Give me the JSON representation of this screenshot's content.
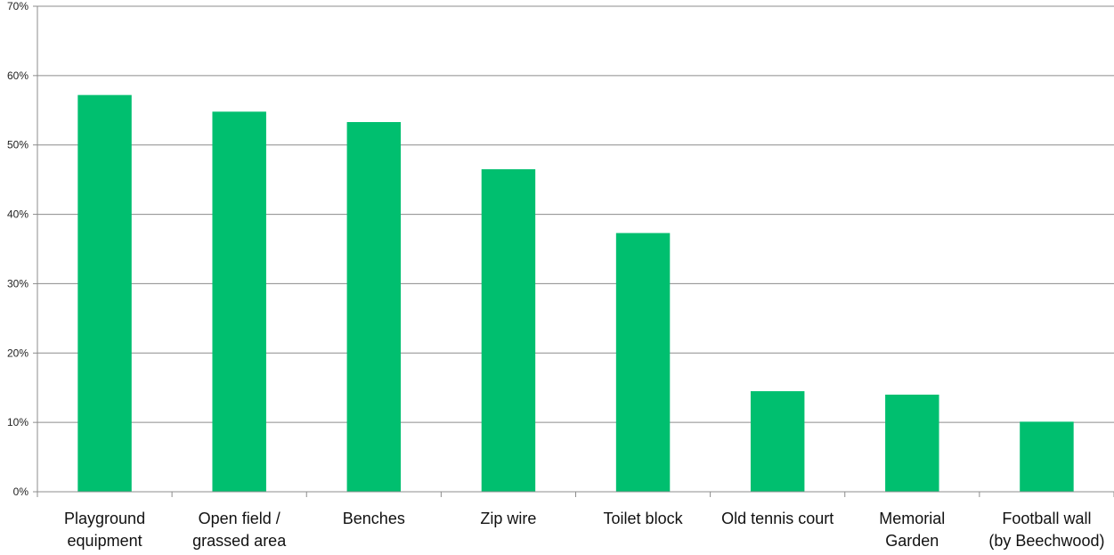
{
  "chart_data": {
    "type": "bar",
    "title": "",
    "xlabel": "",
    "ylabel": "",
    "categories": [
      [
        "Playground",
        "equipment"
      ],
      [
        "Open field /",
        "grassed area"
      ],
      [
        "Benches"
      ],
      [
        "Zip wire"
      ],
      [
        "Toilet block"
      ],
      [
        "Old tennis court"
      ],
      [
        "Memorial",
        "Garden"
      ],
      [
        "Football wall",
        "(by Beechwood)"
      ]
    ],
    "values": [
      57.2,
      54.8,
      53.3,
      46.5,
      37.3,
      14.5,
      14.0,
      10.1
    ],
    "ylim": [
      0,
      70
    ],
    "yticks": [
      0,
      10,
      20,
      30,
      40,
      50,
      60,
      70
    ],
    "ytick_labels": [
      "0%",
      "10%",
      "20%",
      "30%",
      "40%",
      "50%",
      "60%",
      "70%"
    ],
    "grid": true,
    "legend": "none",
    "colors": {
      "bar": "#00BF6F",
      "grid": "#8c8c8c",
      "axis": "#8c8c8c"
    }
  }
}
